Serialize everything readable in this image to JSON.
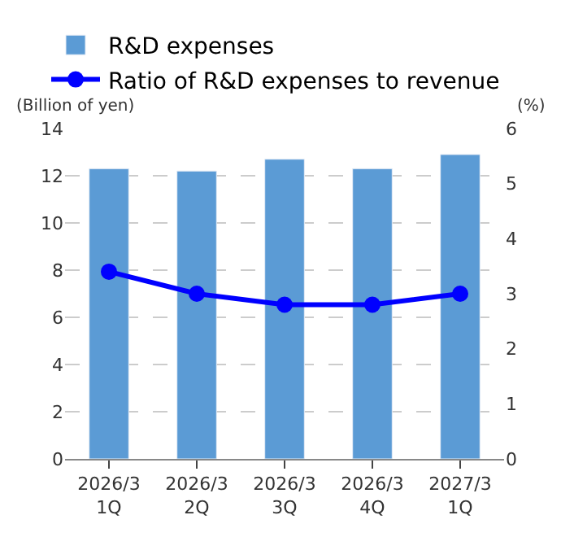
{
  "chart_data": {
    "type": "bar",
    "categories": [
      "2026/3\n1Q",
      "2026/3\n2Q",
      "2026/3\n3Q",
      "2026/3\n4Q",
      "2027/3\n1Q"
    ],
    "series": [
      {
        "name": "R&D expenses",
        "color": "#5b9bd5",
        "values": [
          12.3,
          12.2,
          12.7,
          12.3,
          12.9
        ]
      },
      {
        "name": "Ratio of R&D expenses to revenue",
        "type": "line",
        "axis": "y2",
        "color": "#0000ff",
        "marker": "circle",
        "values": [
          3.4,
          3.0,
          2.8,
          2.8,
          3.0
        ]
      }
    ],
    "ylabel": "(Billion of yen)",
    "y2label": "(%)",
    "ylim": [
      0,
      14
    ],
    "yticks": [
      0,
      2,
      4,
      6,
      8,
      10,
      12,
      14
    ],
    "y2lim": [
      0,
      6
    ],
    "y2ticks": [
      0,
      1,
      2,
      3,
      4,
      5,
      6
    ],
    "grid": "y",
    "legend": "top left"
  }
}
